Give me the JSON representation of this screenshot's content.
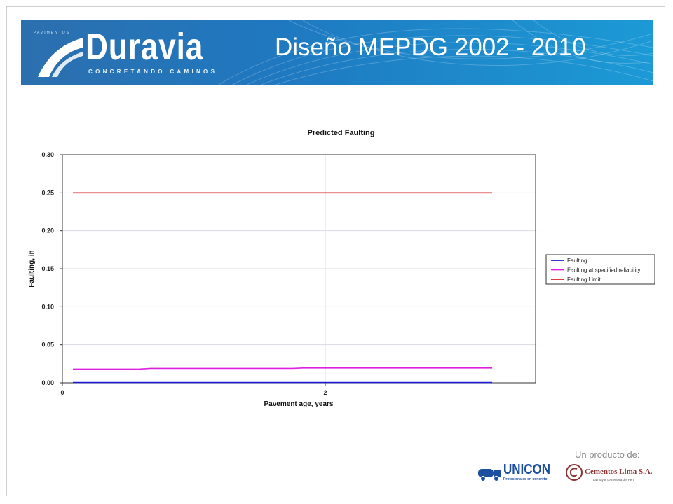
{
  "header": {
    "brand_name": "Duravia",
    "brand_tagline": "CONCRETANDO CAMINOS",
    "brand_pretext": "PAVIMENTOS",
    "title": "Diseño MEPDG 2002 - 2010"
  },
  "footer": {
    "tagline": "Un producto de:",
    "unicon_name": "UNICON",
    "unicon_sub": "Profesionales en concreto",
    "lima_name": "Cementos Lima S.A.",
    "lima_sub": "La mayor cementera del Perú"
  },
  "colors": {
    "faulting": "#1a1ad6",
    "reliability": "#e020e0",
    "limit": "#d62020",
    "banner": "#1f78c0"
  },
  "chart_data": {
    "type": "line",
    "title": "Predicted Faulting",
    "xlabel": "Pavement age, years",
    "ylabel": "Faulting, in",
    "xlim": [
      0,
      3.6
    ],
    "ylim": [
      0,
      0.3
    ],
    "xticks": [
      0,
      2
    ],
    "yticks": [
      0.0,
      0.05,
      0.1,
      0.15,
      0.2,
      0.25,
      0.3
    ],
    "ytick_labels": [
      "0.00",
      "0.05",
      "0.10",
      "0.15",
      "0.20",
      "0.25",
      "0.30"
    ],
    "xtick_labels": [
      "0",
      "2"
    ],
    "grid": true,
    "legend_position": "right",
    "series": [
      {
        "name": "Faulting",
        "color": "#1a1ad6",
        "x": [
          0.08,
          3.27
        ],
        "y": [
          0.0005,
          0.0005
        ]
      },
      {
        "name": "Faulting at specified reliability",
        "color": "#e020e0",
        "x": [
          0.08,
          0.58,
          0.67,
          1.75,
          1.83,
          3.27
        ],
        "y": [
          0.018,
          0.018,
          0.019,
          0.019,
          0.0195,
          0.0195
        ]
      },
      {
        "name": "Faulting Limit",
        "color": "#d62020",
        "x": [
          0.08,
          3.27
        ],
        "y": [
          0.25,
          0.25
        ]
      }
    ]
  }
}
